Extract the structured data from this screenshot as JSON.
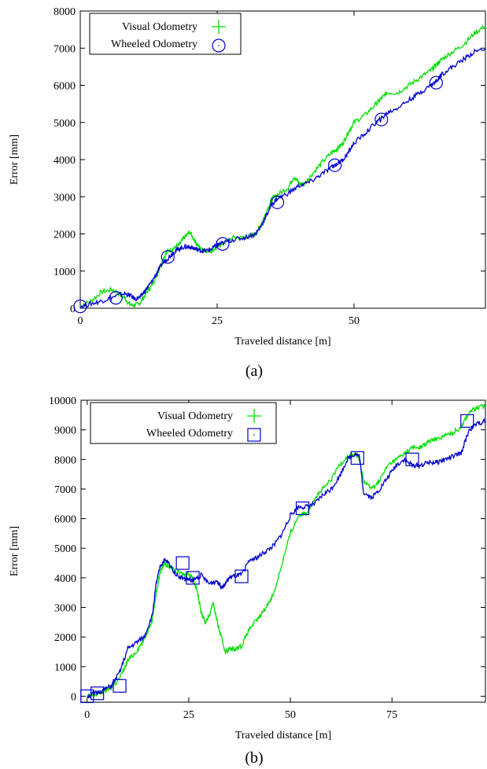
{
  "chart_data": [
    {
      "type": "line",
      "caption": "(a)",
      "xlabel": "Traveled distance [m]",
      "ylabel": "Error [mm]",
      "xlim": [
        0,
        74
      ],
      "ylim": [
        0,
        8000
      ],
      "xticks": [
        0,
        25,
        50
      ],
      "yticks": [
        0,
        1000,
        2000,
        3000,
        4000,
        5000,
        6000,
        7000,
        8000
      ],
      "legend": "top-left",
      "series": [
        {
          "name": "Visual Odometry",
          "color": "#00e000",
          "marker": "plus",
          "x": [
            0,
            2,
            4,
            6,
            8,
            9,
            10,
            11,
            12,
            13,
            14,
            15,
            16,
            17,
            18,
            19,
            20,
            21,
            22,
            23,
            24,
            25,
            26,
            28,
            30,
            32,
            33,
            34,
            35,
            36,
            38,
            39,
            40,
            41,
            42,
            44,
            46,
            47,
            48,
            49,
            50,
            52,
            54,
            55,
            56,
            58,
            60,
            62,
            64,
            65,
            66,
            68,
            70,
            72,
            74
          ],
          "y": [
            50,
            200,
            450,
            500,
            300,
            100,
            80,
            150,
            400,
            600,
            900,
            1300,
            1550,
            1600,
            1700,
            1900,
            2050,
            1800,
            1600,
            1550,
            1550,
            1650,
            1750,
            1900,
            1900,
            2000,
            2250,
            2600,
            2950,
            3050,
            3250,
            3550,
            3350,
            3350,
            3550,
            3900,
            4200,
            4300,
            4450,
            4750,
            5000,
            5200,
            5500,
            5650,
            5800,
            5800,
            6000,
            6200,
            6400,
            6550,
            6700,
            6900,
            7100,
            7400,
            7600
          ],
          "markers_x": [],
          "markers_y": []
        },
        {
          "name": "Wheeled Odometry",
          "color": "#0000cc",
          "marker": "circle",
          "x": [
            0,
            2,
            4,
            6,
            8,
            9,
            10,
            11,
            12,
            13,
            14,
            15,
            16,
            17,
            18,
            19,
            20,
            21,
            22,
            23,
            24,
            25,
            26,
            28,
            30,
            32,
            33,
            34,
            35,
            36,
            38,
            40,
            42,
            44,
            46,
            47,
            48,
            49,
            50,
            52,
            54,
            55,
            56,
            58,
            60,
            62,
            64,
            65,
            66,
            68,
            70,
            72,
            74
          ],
          "y": [
            50,
            120,
            200,
            300,
            400,
            350,
            250,
            300,
            500,
            700,
            950,
            1200,
            1350,
            1500,
            1600,
            1650,
            1650,
            1600,
            1550,
            1550,
            1600,
            1700,
            1750,
            1850,
            1900,
            2000,
            2200,
            2500,
            2800,
            2950,
            3100,
            3300,
            3400,
            3600,
            3800,
            3900,
            4000,
            4200,
            4450,
            4700,
            5000,
            5100,
            5250,
            5400,
            5600,
            5800,
            6000,
            6100,
            6300,
            6500,
            6700,
            6900,
            7000
          ],
          "markers_x": [
            0,
            6.5,
            16,
            26,
            36,
            46.5,
            55,
            65
          ],
          "markers_y": [
            50,
            280,
            1380,
            1730,
            2850,
            3850,
            5080,
            6070
          ]
        }
      ]
    },
    {
      "type": "line",
      "caption": "(b)",
      "xlabel": "Traveled distance [m]",
      "ylabel": "Error [mm]",
      "xlim": [
        -1.5,
        98
      ],
      "ylim": [
        -200,
        10000
      ],
      "xticks": [
        0,
        25,
        50,
        75
      ],
      "yticks": [
        0,
        1000,
        2000,
        3000,
        4000,
        5000,
        6000,
        7000,
        8000,
        9000,
        10000
      ],
      "legend": "top-left",
      "series": [
        {
          "name": "Visual Odometry",
          "color": "#00e000",
          "marker": "plus",
          "x": [
            0,
            2,
            4,
            6,
            8,
            10,
            12,
            14,
            16,
            17,
            18,
            19,
            20,
            22,
            24,
            25,
            26,
            27,
            28,
            29,
            30,
            31,
            32,
            33,
            34,
            35,
            36,
            38,
            40,
            42,
            44,
            46,
            48,
            50,
            52,
            54,
            56,
            58,
            60,
            62,
            64,
            66,
            67,
            68,
            70,
            72,
            74,
            76,
            78,
            80,
            82,
            84,
            86,
            88,
            90,
            92,
            94,
            96,
            98
          ],
          "y": [
            0,
            50,
            150,
            300,
            600,
            1200,
            1500,
            1900,
            2600,
            3500,
            4200,
            4500,
            4400,
            4200,
            4100,
            4150,
            4000,
            3600,
            2900,
            2500,
            2700,
            3200,
            2500,
            2000,
            1500,
            1600,
            1600,
            1700,
            2300,
            2600,
            3000,
            3500,
            4500,
            5500,
            6100,
            6200,
            6700,
            7000,
            7300,
            7800,
            8100,
            8200,
            8000,
            7300,
            7000,
            7300,
            7800,
            8000,
            8200,
            8400,
            8400,
            8600,
            8700,
            8800,
            8900,
            9100,
            9600,
            9750,
            9800
          ],
          "markers_x": [],
          "markers_y": []
        },
        {
          "name": "Wheeled Odometry",
          "color": "#0000cc",
          "marker": "square",
          "x": [
            0,
            2,
            4,
            6,
            8,
            10,
            12,
            14,
            16,
            17,
            18,
            19,
            20,
            22,
            24,
            25,
            26,
            28,
            30,
            32,
            33,
            34,
            35,
            36,
            38,
            40,
            42,
            44,
            46,
            48,
            50,
            52,
            54,
            56,
            58,
            60,
            62,
            64,
            66,
            67,
            68,
            70,
            72,
            74,
            76,
            78,
            80,
            82,
            84,
            86,
            88,
            90,
            92,
            94,
            96,
            98
          ],
          "y": [
            0,
            100,
            200,
            350,
            800,
            1600,
            1800,
            2000,
            2700,
            3800,
            4400,
            4600,
            4500,
            4100,
            3950,
            3950,
            3900,
            4100,
            3800,
            3900,
            3700,
            3800,
            4000,
            4050,
            4100,
            4600,
            4700,
            4900,
            5100,
            5500,
            6100,
            6400,
            6400,
            6500,
            6800,
            7000,
            7400,
            8000,
            8200,
            8100,
            6900,
            6700,
            7000,
            7400,
            7800,
            8000,
            7800,
            7800,
            7900,
            7900,
            8000,
            8100,
            8200,
            9000,
            9200,
            9300
          ],
          "markers_x": [
            0,
            2.5,
            8,
            23.5,
            26,
            38,
            53,
            66.5,
            80,
            93.5
          ],
          "markers_y": [
            0,
            100,
            350,
            4500,
            4000,
            4050,
            6350,
            8050,
            8000,
            9300
          ]
        }
      ]
    }
  ]
}
